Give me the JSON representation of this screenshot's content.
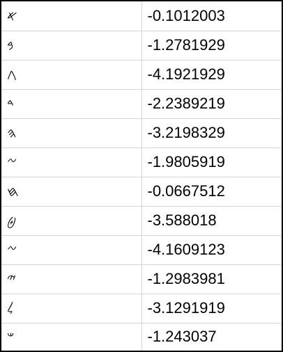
{
  "table": {
    "rows": [
      {
        "symbol": "𐤀",
        "value": "-0.1012003"
      },
      {
        "symbol": "𐤁",
        "value": "-1.2781929"
      },
      {
        "symbol": "𐤂",
        "value": "-4.1921929"
      },
      {
        "symbol": "𐤃",
        "value": "-2.2389219"
      },
      {
        "symbol": "𐤄",
        "value": "-3.2198329"
      },
      {
        "symbol": "𐤆",
        "value": "-1.9805919"
      },
      {
        "symbol": "𐤇",
        "value": "-0.0667512"
      },
      {
        "symbol": "𐤈",
        "value": "-3.588018"
      },
      {
        "symbol": "𐤆",
        "value": "-4.1609123"
      },
      {
        "symbol": "𐤉",
        "value": "-1.2983981"
      },
      {
        "symbol": "𐤋",
        "value": "-3.1291919"
      },
      {
        "symbol": "𐤔",
        "value": "-1.243037"
      }
    ]
  }
}
